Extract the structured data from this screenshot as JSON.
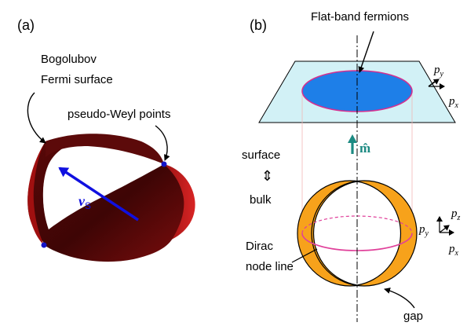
{
  "panel_a": {
    "label": "(a)",
    "bfs_line1": "Bogolubov",
    "bfs_line2": "Fermi surface",
    "pw_label": "pseudo-Weyl points",
    "vs_main": "v",
    "vs_sub": "S"
  },
  "panel_b": {
    "label": "(b)",
    "flat_band": "Flat-band fermions",
    "surface": "surface",
    "updown": "⇕",
    "bulk": "bulk",
    "m_hat": "m̂",
    "dirac_line1": "Dirac",
    "dirac_line2": "node line",
    "gap": "gap",
    "axes_top": {
      "py": "p",
      "py_sub": "y",
      "px": "p",
      "px_sub": "x"
    },
    "axes_bottom": {
      "pz": "p",
      "pz_sub": "z",
      "py": "p",
      "py_sub": "y",
      "px": "p",
      "px_sub": "x"
    }
  },
  "colors": {
    "dark_red": "#4a0606",
    "red": "#b01010",
    "bright_red": "#d42020",
    "velocity_blue": "#1010e0",
    "flat_plane": "#d2f1f6",
    "flat_ellipse": "#1e7fe8",
    "ellipse_edge": "#d43090",
    "orange": "#f7a21b",
    "node_line": "#e0409a",
    "teal": "#1c8a82"
  }
}
